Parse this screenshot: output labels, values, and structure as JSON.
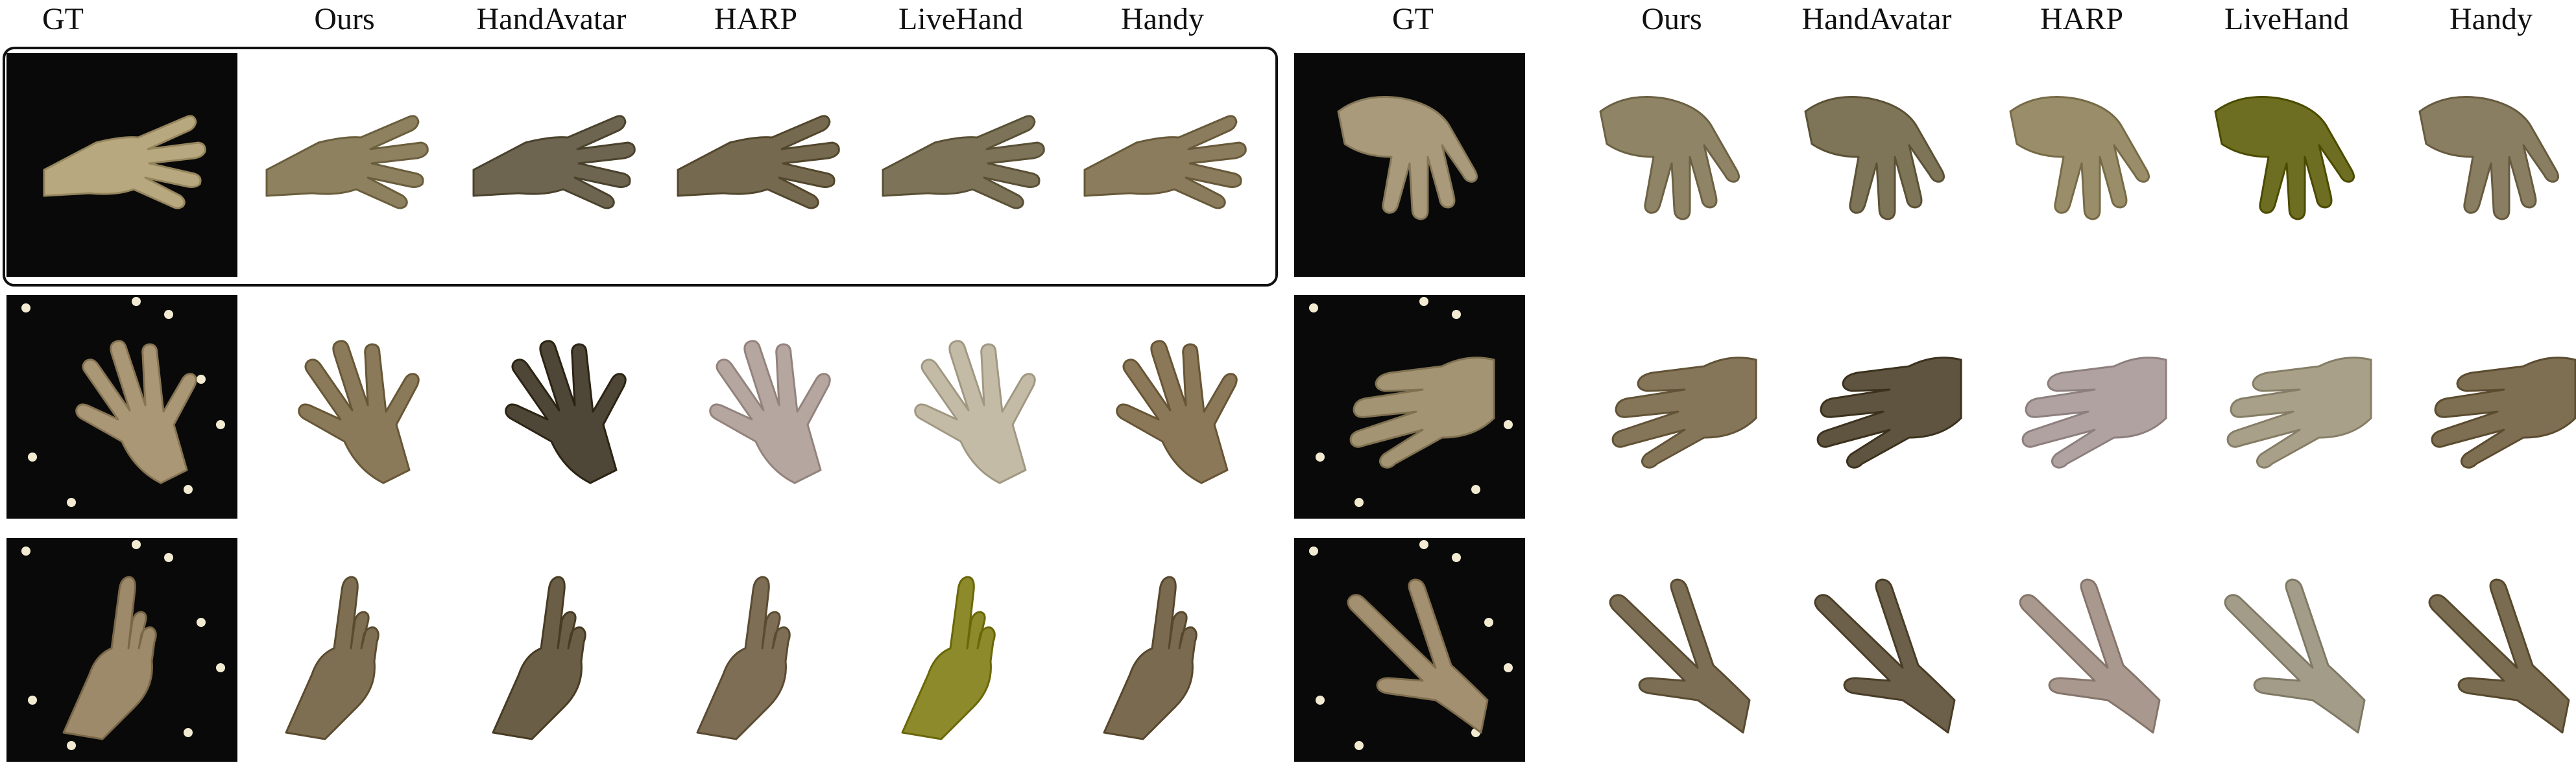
{
  "panels": [
    {
      "id": "left",
      "headers": [
        "GT",
        "Ours",
        "HandAvatar",
        "HARP",
        "LiveHand",
        "Handy"
      ],
      "rows": [
        {
          "cells": [
            {
              "kind": "gt",
              "pose": "open",
              "skin": "#b8a880"
            },
            {
              "kind": "render",
              "pose": "open",
              "skin": "#8d8160"
            },
            {
              "kind": "render",
              "pose": "open",
              "skin": "#6d6550"
            },
            {
              "kind": "render",
              "pose": "open",
              "skin": "#756a50"
            },
            {
              "kind": "render",
              "pose": "open",
              "skin": "#7c7358"
            },
            {
              "kind": "render",
              "pose": "open",
              "skin": "#8a7c5c"
            }
          ]
        },
        {
          "cells": [
            {
              "kind": "gt",
              "pose": "spread",
              "skin": "#a99775",
              "lights": true
            },
            {
              "kind": "render",
              "pose": "spread",
              "skin": "#8a7a5a"
            },
            {
              "kind": "render",
              "pose": "spread",
              "skin": "#4e4636"
            },
            {
              "kind": "render",
              "pose": "spread",
              "skin": "#b6a6a0"
            },
            {
              "kind": "render",
              "pose": "spread",
              "skin": "#c4bba6"
            },
            {
              "kind": "render",
              "pose": "spread",
              "skin": "#8a7858"
            }
          ]
        },
        {
          "cells": [
            {
              "kind": "gt",
              "pose": "thumb",
              "skin": "#9c8a6a",
              "lights": true
            },
            {
              "kind": "render",
              "pose": "thumb",
              "skin": "#7e6f52"
            },
            {
              "kind": "render",
              "pose": "thumb",
              "skin": "#6a5e46"
            },
            {
              "kind": "render",
              "pose": "thumb",
              "skin": "#7d6e55"
            },
            {
              "kind": "render",
              "pose": "thumb",
              "skin": "#8c8a2a"
            },
            {
              "kind": "render",
              "pose": "thumb",
              "skin": "#7a6a50"
            }
          ]
        }
      ]
    },
    {
      "id": "right",
      "headers": [
        "GT",
        "Ours",
        "HandAvatar",
        "HARP",
        "LiveHand",
        "Handy"
      ],
      "rows": [
        {
          "cells": [
            {
              "kind": "gt",
              "pose": "down",
              "skin": "#a89a7a"
            },
            {
              "kind": "render",
              "pose": "down",
              "skin": "#8f8466"
            },
            {
              "kind": "render",
              "pose": "down",
              "skin": "#7e7458"
            },
            {
              "kind": "render",
              "pose": "down",
              "skin": "#9a8e6a"
            },
            {
              "kind": "render",
              "pose": "down",
              "skin": "#6e6e22"
            },
            {
              "kind": "render",
              "pose": "down",
              "skin": "#8a7e62"
            }
          ]
        },
        {
          "cells": [
            {
              "kind": "gt",
              "pose": "grip",
              "skin": "#a39574",
              "lights": true
            },
            {
              "kind": "render",
              "pose": "grip",
              "skin": "#85765a"
            },
            {
              "kind": "render",
              "pose": "grip",
              "skin": "#5e5440"
            },
            {
              "kind": "render",
              "pose": "grip",
              "skin": "#b0a2a0"
            },
            {
              "kind": "render",
              "pose": "grip",
              "skin": "#a8a088"
            },
            {
              "kind": "render",
              "pose": "grip",
              "skin": "#7e6e52"
            }
          ]
        },
        {
          "cells": [
            {
              "kind": "gt",
              "pose": "vsign",
              "skin": "#a29070",
              "lights": true
            },
            {
              "kind": "render",
              "pose": "vsign",
              "skin": "#7c6e54"
            },
            {
              "kind": "render",
              "pose": "vsign",
              "skin": "#6c604a"
            },
            {
              "kind": "render",
              "pose": "vsign",
              "skin": "#a8988e"
            },
            {
              "kind": "render",
              "pose": "vsign",
              "skin": "#a29c88"
            },
            {
              "kind": "render",
              "pose": "vsign",
              "skin": "#7a6c50"
            }
          ]
        }
      ]
    }
  ]
}
